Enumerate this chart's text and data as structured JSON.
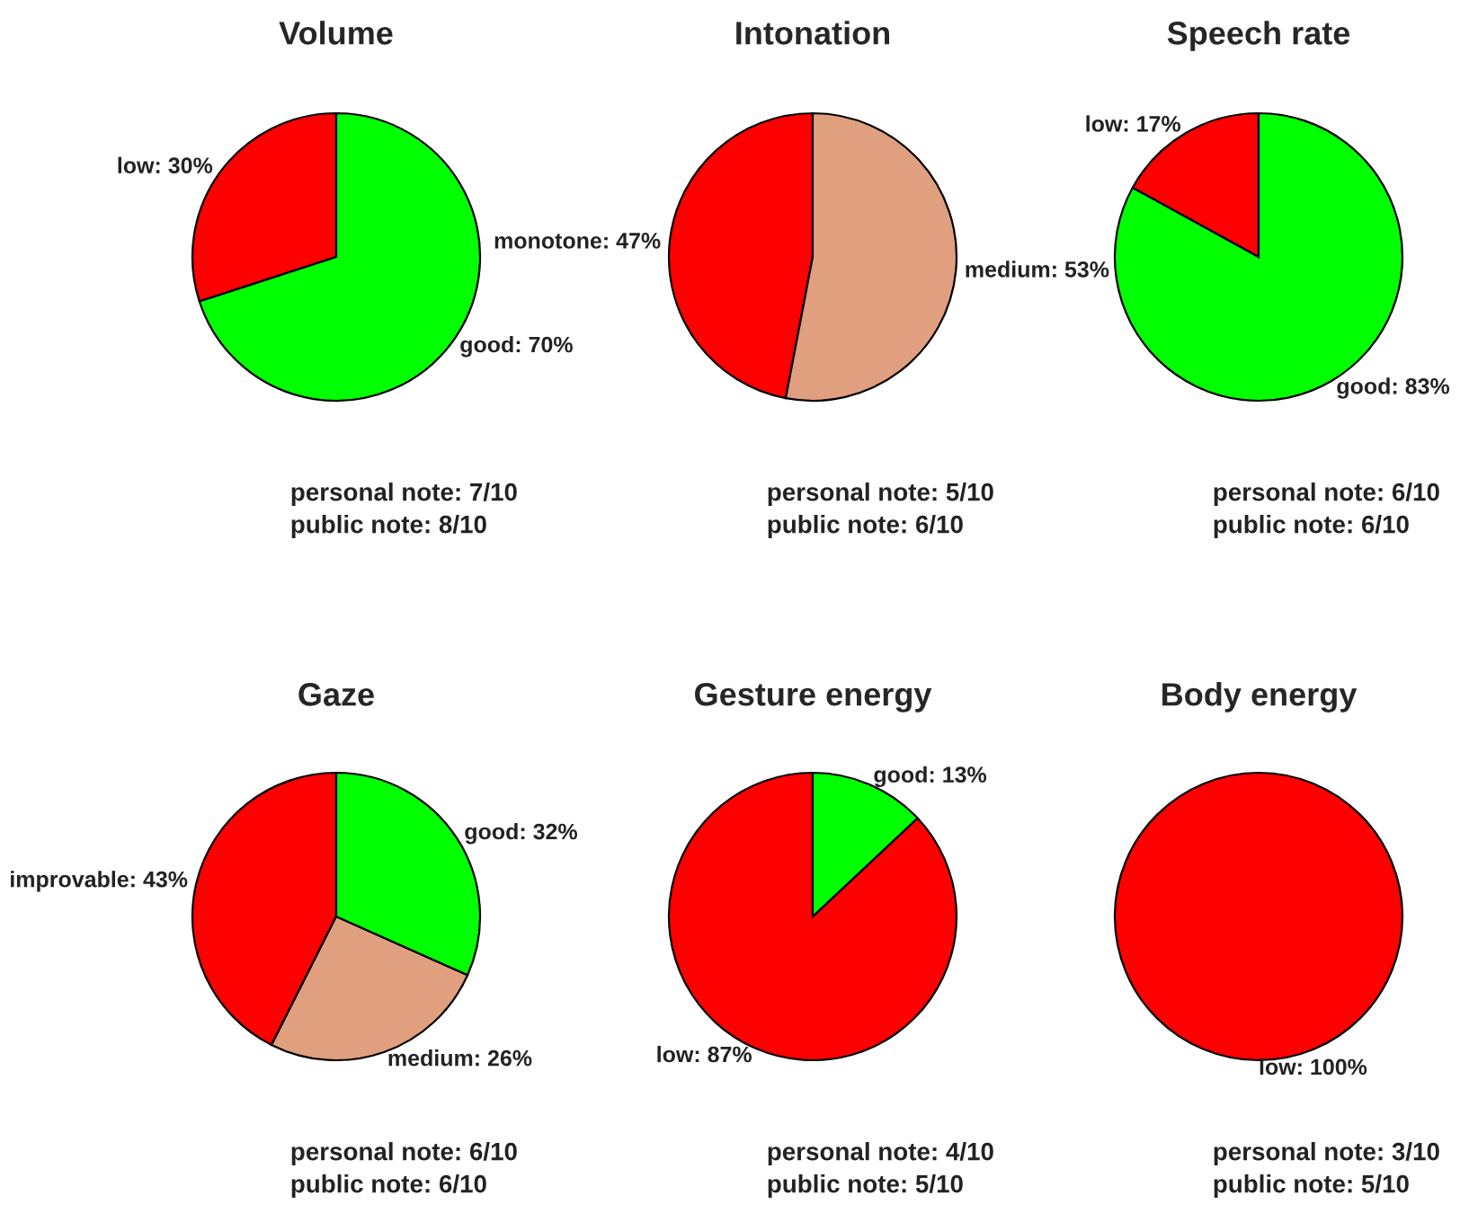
{
  "chart_data": [
    {
      "type": "pie",
      "title": "Volume",
      "categories": [
        "low: 30%",
        "good: 70%"
      ],
      "values": [
        30,
        70
      ],
      "colors": [
        "#ff0000",
        "#00ff00"
      ],
      "annotations": [
        "personal note: 7/10",
        "public note: 8/10"
      ]
    },
    {
      "type": "pie",
      "title": "Intonation",
      "categories": [
        "monotone: 47%",
        "medium: 53%"
      ],
      "values": [
        47,
        53
      ],
      "colors": [
        "#ff0000",
        "#e0a080"
      ],
      "annotations": [
        "personal note: 5/10",
        "public note: 6/10"
      ]
    },
    {
      "type": "pie",
      "title": "Speech rate",
      "categories": [
        "low: 17%",
        "good: 83%"
      ],
      "values": [
        17,
        83
      ],
      "colors": [
        "#ff0000",
        "#00ff00"
      ],
      "annotations": [
        "personal note: 6/10",
        "public note: 6/10"
      ]
    },
    {
      "type": "pie",
      "title": "Gaze",
      "categories": [
        "improvable: 43%",
        "medium: 26%",
        "good: 32%"
      ],
      "values": [
        43,
        26,
        32
      ],
      "colors": [
        "#ff0000",
        "#e0a080",
        "#00ff00"
      ],
      "annotations": [
        "personal note: 6/10",
        "public note: 6/10"
      ]
    },
    {
      "type": "pie",
      "title": "Gesture energy",
      "categories": [
        "low: 87%",
        "good: 13%"
      ],
      "values": [
        87,
        13
      ],
      "colors": [
        "#ff0000",
        "#00ff00"
      ],
      "annotations": [
        "personal note: 4/10",
        "public note: 5/10"
      ]
    },
    {
      "type": "pie",
      "title": "Body energy",
      "categories": [
        "low: 100%"
      ],
      "values": [
        100
      ],
      "colors": [
        "#ff0000"
      ],
      "annotations": [
        "personal note: 3/10",
        "public note: 5/10"
      ]
    }
  ]
}
